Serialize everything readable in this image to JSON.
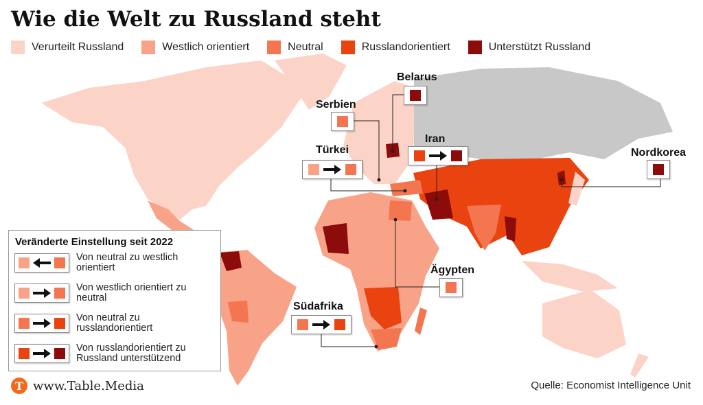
{
  "title": "Wie die Welt zu Russland steht",
  "legend": [
    {
      "label": "Verurteilt Russland",
      "color": "#fcd4c7"
    },
    {
      "label": "Westlich orientiert",
      "color": "#f8a287"
    },
    {
      "label": "Neutral",
      "color": "#f47650"
    },
    {
      "label": "Russlandorientiert",
      "color": "#e9430f"
    },
    {
      "label": "Unterstützt Russland",
      "color": "#8c0b0b"
    }
  ],
  "callouts": [
    {
      "label": "Belarus",
      "colors": [
        "#8c0b0b"
      ]
    },
    {
      "label": "Serbien",
      "colors": [
        "#f47650"
      ]
    },
    {
      "label": "Türkei",
      "colors": [
        "#f8a287",
        "#f47650"
      ]
    },
    {
      "label": "Iran",
      "colors": [
        "#e9430f",
        "#8c0b0b"
      ]
    },
    {
      "label": "Nordkorea",
      "colors": [
        "#8c0b0b"
      ]
    },
    {
      "label": "Ägypten",
      "colors": [
        "#f47650"
      ]
    },
    {
      "label": "Südafrika",
      "colors": [
        "#f47650",
        "#e9430f"
      ]
    }
  ],
  "change_legend": {
    "title": "Veränderte Einstellung seit 2022",
    "items": [
      {
        "label": "Von neutral zu westlich orientiert",
        "from": "#f8a287",
        "to": "#f47650",
        "direction": "left"
      },
      {
        "label": "Von westlich orientiert zu neutral",
        "from": "#f8a287",
        "to": "#f47650",
        "direction": "right"
      },
      {
        "label": "Von neutral zu russlandorientiert",
        "from": "#f47650",
        "to": "#e9430f",
        "direction": "right"
      },
      {
        "label": "Von russlandorientiert zu Russland unterstützend",
        "from": "#e9430f",
        "to": "#8c0b0b",
        "direction": "right"
      }
    ]
  },
  "logo": "T",
  "brand": "www.Table.Media",
  "source": "Quelle: Economist Intelligence Unit"
}
